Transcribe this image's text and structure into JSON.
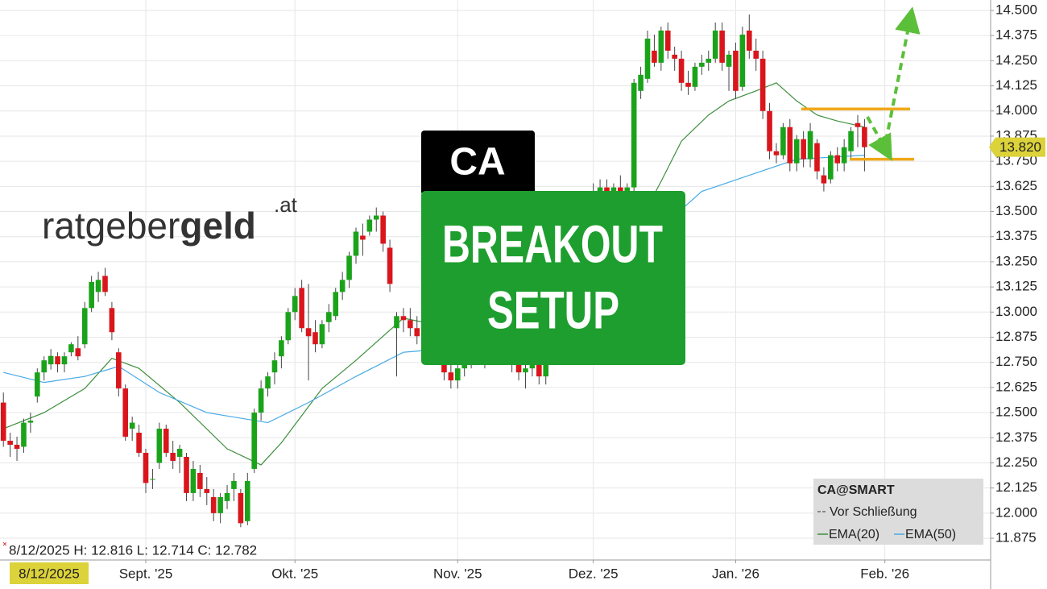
{
  "chart_data": {
    "type": "candlestick",
    "candles": [
      [
        12.55,
        12.6,
        12.33,
        12.36
      ],
      [
        12.36,
        12.4,
        12.28,
        12.34
      ],
      [
        12.34,
        12.38,
        12.26,
        12.32
      ],
      [
        12.33,
        12.47,
        12.3,
        12.45
      ],
      [
        12.45,
        12.5,
        12.4,
        12.46
      ],
      [
        12.58,
        12.72,
        12.55,
        12.7
      ],
      [
        12.7,
        12.78,
        12.66,
        12.76
      ],
      [
        12.74,
        12.816,
        12.714,
        12.782
      ],
      [
        12.78,
        12.8,
        12.7,
        12.74
      ],
      [
        12.74,
        12.8,
        12.7,
        12.78
      ],
      [
        12.8,
        12.85,
        12.78,
        12.84
      ],
      [
        12.82,
        12.88,
        12.76,
        12.78
      ],
      [
        12.84,
        13.05,
        12.82,
        13.02
      ],
      [
        13.02,
        13.18,
        13,
        13.15
      ],
      [
        13.1,
        13.2,
        13.05,
        13.16
      ],
      [
        13.18,
        13.22,
        13.08,
        13.1
      ],
      [
        13.02,
        13.05,
        12.86,
        12.9
      ],
      [
        12.8,
        12.82,
        12.58,
        12.62
      ],
      [
        12.62,
        12.64,
        12.36,
        12.38
      ],
      [
        12.42,
        12.48,
        12.36,
        12.45
      ],
      [
        12.4,
        12.44,
        12.28,
        12.3
      ],
      [
        12.3,
        12.32,
        12.1,
        12.15
      ],
      [
        12.17,
        12.22,
        12.12,
        12.17
      ],
      [
        12.25,
        12.45,
        12.22,
        12.42
      ],
      [
        12.42,
        12.44,
        12.28,
        12.3
      ],
      [
        12.3,
        12.36,
        12.22,
        12.26
      ],
      [
        12.28,
        12.34,
        12.2,
        12.32
      ],
      [
        12.28,
        12.3,
        12.06,
        12.1
      ],
      [
        12.1,
        12.26,
        12.06,
        12.22
      ],
      [
        12.2,
        12.24,
        12.08,
        12.12
      ],
      [
        12.12,
        12.18,
        12.04,
        12.1
      ],
      [
        12.08,
        12.12,
        11.96,
        12
      ],
      [
        12,
        12.1,
        11.95,
        12.08
      ],
      [
        12.06,
        12.14,
        12.02,
        12.1
      ],
      [
        12.12,
        12.2,
        12.06,
        12.16
      ],
      [
        12.1,
        12.12,
        11.93,
        11.95
      ],
      [
        11.96,
        12.2,
        11.94,
        12.16
      ],
      [
        12.22,
        12.52,
        12.2,
        12.5
      ],
      [
        12.5,
        12.66,
        12.46,
        12.62
      ],
      [
        12.62,
        12.7,
        12.58,
        12.68
      ],
      [
        12.7,
        12.8,
        12.64,
        12.76
      ],
      [
        12.78,
        12.88,
        12.72,
        12.86
      ],
      [
        12.86,
        13.02,
        12.84,
        13
      ],
      [
        13,
        13.12,
        12.96,
        13.08
      ],
      [
        13.12,
        13.16,
        12.9,
        12.92
      ],
      [
        12.92,
        13.14,
        12.66,
        12.88
      ],
      [
        12.9,
        12.96,
        12.8,
        12.84
      ],
      [
        12.84,
        12.96,
        12.82,
        12.94
      ],
      [
        12.95,
        13.04,
        12.9,
        13
      ],
      [
        12.98,
        13.12,
        12.96,
        13.1
      ],
      [
        13.1,
        13.2,
        13.06,
        13.16
      ],
      [
        13.16,
        13.3,
        13.12,
        13.28
      ],
      [
        13.28,
        13.42,
        13.24,
        13.4
      ],
      [
        13.38,
        13.44,
        13.28,
        13.36
      ],
      [
        13.4,
        13.48,
        13.38,
        13.46
      ],
      [
        13.46,
        13.52,
        13.4,
        13.48
      ],
      [
        13.48,
        13.5,
        13.3,
        13.34
      ],
      [
        13.32,
        13.36,
        13.1,
        13.14
      ],
      [
        12.92,
        13,
        12.68,
        12.98
      ],
      [
        12.98,
        13.02,
        12.9,
        12.96
      ],
      [
        12.96,
        13.02,
        12.88,
        12.92
      ],
      [
        12.92,
        12.98,
        12.84,
        12.88
      ],
      [
        12.88,
        12.94,
        12.8,
        12.9
      ],
      [
        12.9,
        12.96,
        12.82,
        12.84
      ],
      [
        12.84,
        12.88,
        12.74,
        12.78
      ],
      [
        12.78,
        12.82,
        12.66,
        12.7
      ],
      [
        12.7,
        12.76,
        12.62,
        12.66
      ],
      [
        12.66,
        12.74,
        12.62,
        12.72
      ],
      [
        12.72,
        12.8,
        12.68,
        12.76
      ],
      [
        12.76,
        12.84,
        12.72,
        12.8
      ],
      [
        12.8,
        12.86,
        12.74,
        12.78
      ],
      [
        12.78,
        12.84,
        12.72,
        12.82
      ],
      [
        12.82,
        12.9,
        12.78,
        12.86
      ],
      [
        12.86,
        12.92,
        12.8,
        12.84
      ],
      [
        12.84,
        12.88,
        12.76,
        12.8
      ],
      [
        12.8,
        12.84,
        12.7,
        12.74
      ],
      [
        12.74,
        12.8,
        12.66,
        12.7
      ],
      [
        12.7,
        12.76,
        12.62,
        12.72
      ],
      [
        12.72,
        12.8,
        12.68,
        12.78
      ],
      [
        12.76,
        12.78,
        12.64,
        12.68
      ],
      [
        12.68,
        12.76,
        12.64,
        12.74
      ],
      [
        12.8,
        12.92,
        12.78,
        12.9
      ],
      [
        12.92,
        13.06,
        12.9,
        13.04
      ],
      [
        13.06,
        13.2,
        13.02,
        13.18
      ],
      [
        13.2,
        13.34,
        13.16,
        13.3
      ],
      [
        13.32,
        13.46,
        13.28,
        13.42
      ],
      [
        13.44,
        13.56,
        13.4,
        13.52
      ],
      [
        13.54,
        13.64,
        13.5,
        13.6
      ],
      [
        13.6,
        13.66,
        13.54,
        13.62
      ],
      [
        13.62,
        13.66,
        13.56,
        13.6
      ],
      [
        13.6,
        13.64,
        13.54,
        13.62
      ],
      [
        13.62,
        13.68,
        13.58,
        13.6
      ],
      [
        13.6,
        13.64,
        13.56,
        13.62
      ],
      [
        13.62,
        14.16,
        13.6,
        14.14
      ],
      [
        14.1,
        14.22,
        14.06,
        14.18
      ],
      [
        14.16,
        14.4,
        14.14,
        14.36
      ],
      [
        14.3,
        14.38,
        14.22,
        14.24
      ],
      [
        14.24,
        14.42,
        14.2,
        14.4
      ],
      [
        14.4,
        14.44,
        14.26,
        14.3
      ],
      [
        14.28,
        14.32,
        14.2,
        14.26
      ],
      [
        14.26,
        14.3,
        14.1,
        14.14
      ],
      [
        14.14,
        14.2,
        14.08,
        14.12
      ],
      [
        14.12,
        14.24,
        14.1,
        14.22
      ],
      [
        14.22,
        14.28,
        14.18,
        14.24
      ],
      [
        14.24,
        14.3,
        14.2,
        14.26
      ],
      [
        14.26,
        14.44,
        14.24,
        14.4
      ],
      [
        14.4,
        14.44,
        14.2,
        14.24
      ],
      [
        14.22,
        14.3,
        14.1,
        14.28
      ],
      [
        14.3,
        14.34,
        14.06,
        14.1
      ],
      [
        14.12,
        14.42,
        14.1,
        14.38
      ],
      [
        14.4,
        14.48,
        14.26,
        14.3
      ],
      [
        14.3,
        14.36,
        14.2,
        14.26
      ],
      [
        14.26,
        14.3,
        13.96,
        14
      ],
      [
        14,
        14.04,
        13.76,
        13.8
      ],
      [
        13.8,
        13.84,
        13.74,
        13.78
      ],
      [
        13.78,
        13.94,
        13.76,
        13.92
      ],
      [
        13.92,
        13.96,
        13.7,
        13.74
      ],
      [
        13.74,
        13.88,
        13.7,
        13.86
      ],
      [
        13.86,
        13.9,
        13.72,
        13.76
      ],
      [
        13.76,
        13.94,
        13.72,
        13.9
      ],
      [
        13.84,
        13.86,
        13.66,
        13.7
      ],
      [
        13.68,
        13.72,
        13.6,
        13.64
      ],
      [
        13.66,
        13.8,
        13.64,
        13.78
      ],
      [
        13.78,
        13.82,
        13.7,
        13.74
      ],
      [
        13.74,
        13.86,
        13.7,
        13.82
      ],
      [
        13.8,
        13.92,
        13.76,
        13.9
      ],
      [
        13.94,
        13.98,
        13.82,
        13.92
      ],
      [
        13.92,
        13.96,
        13.7,
        13.82
      ]
    ],
    "up_color": "#1aa31a",
    "down_color": "#d9161c",
    "series": [
      {
        "name": "EMA(20)",
        "color": "#3d8f3d",
        "x": [
          0,
          6,
          12,
          16,
          20,
          26,
          33,
          38,
          41,
          47,
          52,
          59,
          66,
          74,
          82,
          90,
          97,
          100,
          104,
          107,
          111,
          114,
          117,
          120,
          123,
          127
        ],
        "values": [
          12.42,
          12.5,
          12.62,
          12.77,
          12.72,
          12.55,
          12.32,
          12.24,
          12.35,
          12.62,
          12.76,
          12.97,
          12.92,
          12.85,
          12.9,
          13.2,
          13.65,
          13.85,
          13.98,
          14.05,
          14.1,
          14.14,
          14.05,
          13.98,
          13.95,
          13.92
        ]
      },
      {
        "name": "EMA(50)",
        "color": "#47a9e6",
        "x": [
          0,
          6,
          12,
          17,
          23,
          30,
          39,
          45,
          52,
          59,
          66,
          76,
          86,
          98,
          103,
          110,
          117,
          122,
          127
        ],
        "values": [
          12.7,
          12.65,
          12.68,
          12.73,
          12.6,
          12.5,
          12.45,
          12.55,
          12.68,
          12.8,
          12.82,
          12.85,
          12.95,
          13.45,
          13.6,
          13.68,
          13.76,
          13.77,
          13.78
        ]
      }
    ],
    "levels": [
      14.01,
      13.76
    ],
    "level_color": "#f0a818",
    "xlim": [
      -0.5,
      145.6
    ],
    "ylim": [
      11.767,
      14.552
    ],
    "xticks": [
      {
        "value": 21,
        "label": "Sept. '25"
      },
      {
        "value": 43,
        "label": "Okt. '25"
      },
      {
        "value": 67,
        "label": "Nov. '25"
      },
      {
        "value": 87,
        "label": "Dez. '25"
      },
      {
        "value": 108,
        "label": "Jan. '26"
      },
      {
        "value": 130,
        "label": "Feb. '26"
      }
    ],
    "yticks": [
      {
        "value": 14.5,
        "label": "14.500"
      },
      {
        "value": 14.375,
        "label": "14.375"
      },
      {
        "value": 14.25,
        "label": "14.250"
      },
      {
        "value": 14.125,
        "label": "14.125"
      },
      {
        "value": 14,
        "label": "14.000"
      },
      {
        "value": 13.875,
        "label": "13.875"
      },
      {
        "value": 13.75,
        "label": "13.750"
      },
      {
        "value": 13.625,
        "label": "13.625"
      },
      {
        "value": 13.5,
        "label": "13.500"
      },
      {
        "value": 13.375,
        "label": "13.375"
      },
      {
        "value": 13.25,
        "label": "13.250"
      },
      {
        "value": 13.125,
        "label": "13.125"
      },
      {
        "value": 13,
        "label": "13.000"
      },
      {
        "value": 12.875,
        "label": "12.875"
      },
      {
        "value": 12.75,
        "label": "12.750"
      },
      {
        "value": 12.625,
        "label": "12.625"
      },
      {
        "value": 12.5,
        "label": "12.500"
      },
      {
        "value": 12.375,
        "label": "12.375"
      },
      {
        "value": 12.25,
        "label": "12.250"
      },
      {
        "value": 12.125,
        "label": "12.125"
      },
      {
        "value": 12,
        "label": "12.000"
      },
      {
        "value": 11.875,
        "label": "11.875"
      }
    ],
    "grid": true,
    "last_price": {
      "value": 13.82,
      "label": "13.820"
    },
    "crosshair_date": "8/12/2025",
    "info": "8/12/2025 H: 12.816 L: 12.714 C: 12.782",
    "legend_title": "CA@SMART",
    "legend_note": "Vor Schließung",
    "ticker": "CA",
    "headline": [
      "BREAKOUT",
      "SETUP"
    ],
    "logo": {
      "light": "ratgeber",
      "bold": "geld",
      "suffix": ".at"
    }
  }
}
